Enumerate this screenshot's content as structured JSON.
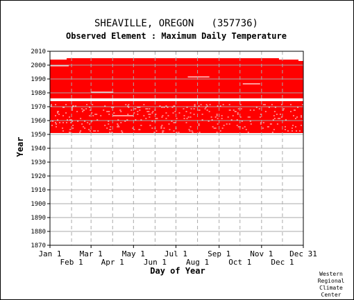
{
  "chart_data": {
    "type": "scatter",
    "title": "SHEAVILLE, OREGON   (357736)",
    "subtitle": "Observed Element : Maximum Daily Temperature",
    "xlabel": "Day of Year",
    "ylabel": "Year",
    "ylim": [
      1870,
      2010
    ],
    "y_ticks": [
      1870,
      1880,
      1890,
      1900,
      1910,
      1920,
      1930,
      1940,
      1950,
      1960,
      1970,
      1980,
      1990,
      2000,
      2010
    ],
    "x_ticks_upper": [
      "Jan 1",
      "Mar 1",
      "May 1",
      "Jul 1",
      "Sep 1",
      "Nov 1",
      "Dec 31"
    ],
    "x_ticks_lower": [
      "Feb 1",
      "Apr 1",
      "Jun 1",
      "Aug 1",
      "Oct 1",
      "Dec 1"
    ],
    "x_tick_days_upper": [
      1,
      60,
      121,
      182,
      244,
      305,
      365
    ],
    "x_tick_days_lower": [
      32,
      91,
      152,
      213,
      274,
      335
    ],
    "data_coverage": {
      "year_start": 1951,
      "year_end": 2004,
      "day_start": 1,
      "day_end": 365
    },
    "gap_years": [
      1974,
      1975
    ],
    "grid": true,
    "mark_color": "#ff0000",
    "grid_color": "#aaaaaa",
    "credit": [
      "Western",
      "Regional",
      "Climate",
      "Center"
    ]
  }
}
